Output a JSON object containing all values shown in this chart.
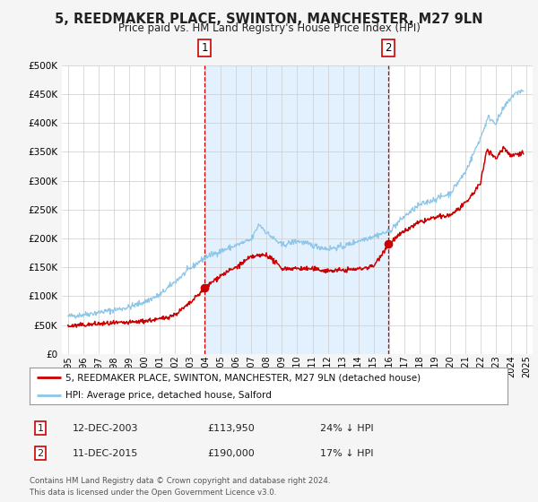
{
  "title": "5, REEDMAKER PLACE, SWINTON, MANCHESTER, M27 9LN",
  "subtitle": "Price paid vs. HM Land Registry's House Price Index (HPI)",
  "background_color": "#f5f5f5",
  "plot_bg_color": "#ffffff",
  "hpi_color": "#8ec6e8",
  "price_color": "#cc0000",
  "marker_color": "#cc0000",
  "vspan_color": "#ddeeff",
  "grid_color": "#cccccc",
  "ylim": [
    0,
    500000
  ],
  "yticks": [
    0,
    50000,
    100000,
    150000,
    200000,
    250000,
    300000,
    350000,
    400000,
    450000,
    500000
  ],
  "ytick_labels": [
    "£0",
    "£50K",
    "£100K",
    "£150K",
    "£200K",
    "£250K",
    "£300K",
    "£350K",
    "£400K",
    "£450K",
    "£500K"
  ],
  "xtick_years": [
    1995,
    1996,
    1997,
    1998,
    1999,
    2000,
    2001,
    2002,
    2003,
    2004,
    2005,
    2006,
    2007,
    2008,
    2009,
    2010,
    2011,
    2012,
    2013,
    2014,
    2015,
    2016,
    2017,
    2018,
    2019,
    2020,
    2021,
    2022,
    2023,
    2024,
    2025
  ],
  "marker1_x": 2003.95,
  "marker1_y": 113950,
  "marker2_x": 2015.95,
  "marker2_y": 190000,
  "vline1_x": 2003.95,
  "vline2_x": 2015.95,
  "legend_label_price": "5, REEDMAKER PLACE, SWINTON, MANCHESTER, M27 9LN (detached house)",
  "legend_label_hpi": "HPI: Average price, detached house, Salford",
  "table_row1": [
    "1",
    "12-DEC-2003",
    "£113,950",
    "24% ↓ HPI"
  ],
  "table_row2": [
    "2",
    "11-DEC-2015",
    "£190,000",
    "17% ↓ HPI"
  ],
  "footer_line1": "Contains HM Land Registry data © Crown copyright and database right 2024.",
  "footer_line2": "This data is licensed under the Open Government Licence v3.0."
}
